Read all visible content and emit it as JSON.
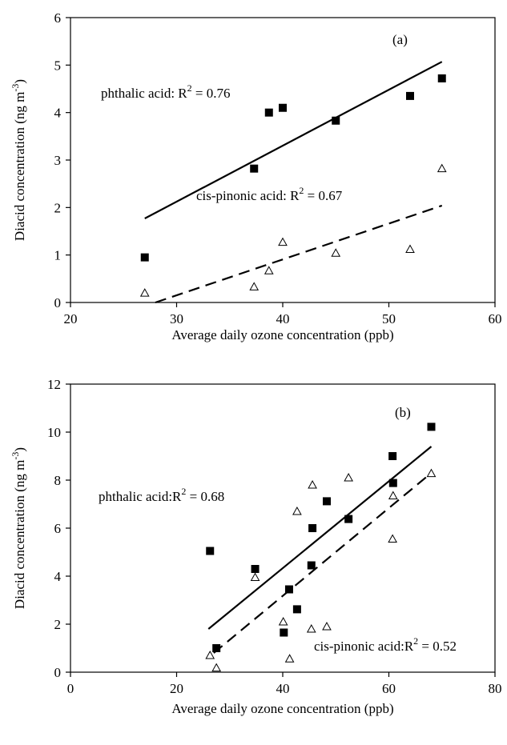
{
  "chart_data": [
    {
      "type": "scatter",
      "panel_label": "(a)",
      "xlabel": "Average daily ozone concentration (ppb)",
      "ylabel": "Diacid concentration (ng m-3)",
      "ylabel_base": "Diacid concentration (ng m",
      "ylabel_sup": "-3",
      "ylabel_end": ")",
      "xlim": [
        20,
        60
      ],
      "ylim": [
        0,
        6
      ],
      "xticks": [
        20,
        30,
        40,
        50,
        60
      ],
      "yticks": [
        0,
        1,
        2,
        3,
        4,
        5,
        6
      ],
      "grid": false,
      "series": [
        {
          "name": "phthalic acid",
          "marker": "filled-square",
          "label_prefix": "phthalic acid: R",
          "label_suffix": " = 0.76",
          "r2": 0.76,
          "x": [
            27,
            37.3,
            38.7,
            40,
            45,
            52,
            55
          ],
          "y": [
            0.95,
            2.82,
            4.0,
            4.1,
            3.83,
            4.35,
            4.72
          ],
          "fit": {
            "x": [
              27,
              55
            ],
            "y": [
              1.77,
              5.07
            ],
            "style": "solid"
          }
        },
        {
          "name": "cis-pinonic acid",
          "marker": "open-triangle",
          "label_prefix": "cis-pinonic acid: R",
          "label_suffix": " = 0.67",
          "r2": 0.67,
          "x": [
            27,
            37.3,
            38.7,
            40,
            45,
            52,
            55
          ],
          "y": [
            0.2,
            0.33,
            0.67,
            1.27,
            1.04,
            1.12,
            2.82
          ],
          "fit": {
            "x": [
              28,
              55
            ],
            "y": [
              0.0,
              2.04
            ],
            "style": "dashed"
          }
        }
      ]
    },
    {
      "type": "scatter",
      "panel_label": "(b)",
      "xlabel": "Average daily ozone concentration (ppb)",
      "ylabel": "Diacid concentration (ng m-3)",
      "ylabel_base": "Diacid concentration (ng m",
      "ylabel_sup": "-3",
      "ylabel_end": ")",
      "xlim": [
        0,
        80
      ],
      "ylim": [
        0,
        12
      ],
      "xticks": [
        0,
        20,
        40,
        60,
        80
      ],
      "yticks": [
        0,
        2,
        4,
        6,
        8,
        10,
        12
      ],
      "grid": false,
      "series": [
        {
          "name": "phthalic acid",
          "marker": "filled-square",
          "label_prefix": "phthalic acid:R",
          "label_suffix": " = 0.68",
          "r2": 0.68,
          "x": [
            26.3,
            27.5,
            34.8,
            40.2,
            41.2,
            42.7,
            45.4,
            45.6,
            48.3,
            52.4,
            60.7,
            60.8,
            68.0
          ],
          "y": [
            5.05,
            1.0,
            4.3,
            1.65,
            3.45,
            2.62,
            4.45,
            6.0,
            7.12,
            6.38,
            9.0,
            7.88,
            10.22
          ],
          "fit": {
            "x": [
              26,
              68
            ],
            "y": [
              1.8,
              9.4
            ],
            "style": "solid"
          }
        },
        {
          "name": "cis-pinonic acid",
          "marker": "open-triangle",
          "label_prefix": "cis-pinonic acid:R",
          "label_suffix": " = 0.52",
          "r2": 0.52,
          "x": [
            26.3,
            27.5,
            34.8,
            40.1,
            41.3,
            42.7,
            45.4,
            45.6,
            48.3,
            52.4,
            60.7,
            60.8,
            68.0
          ],
          "y": [
            0.7,
            0.18,
            3.95,
            2.1,
            0.56,
            6.7,
            1.8,
            7.8,
            1.9,
            8.1,
            5.55,
            7.35,
            8.28
          ],
          "fit": {
            "x": [
              27,
              68
            ],
            "y": [
              0.8,
              8.3
            ],
            "style": "dashed"
          }
        }
      ]
    }
  ]
}
